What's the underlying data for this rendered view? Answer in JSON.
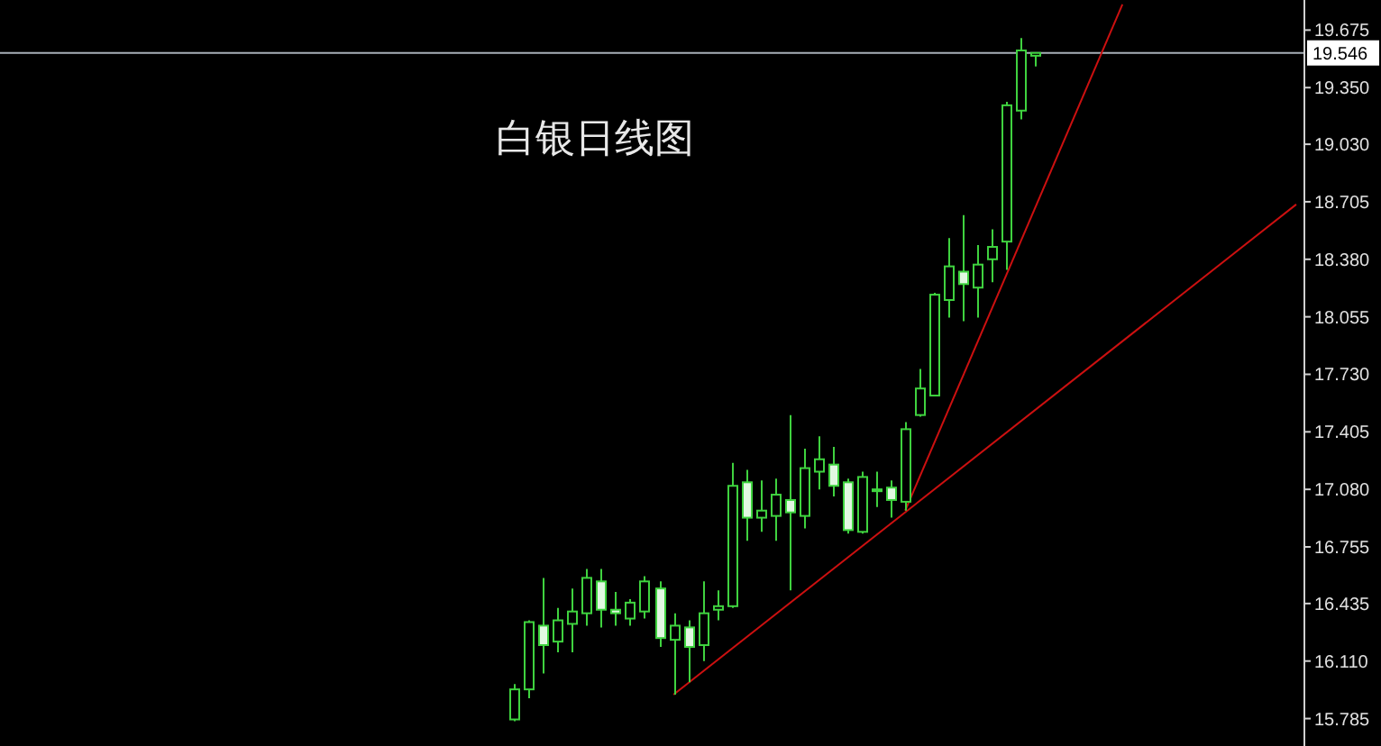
{
  "chart_data": {
    "type": "candlestick",
    "title": "白银日线图",
    "color": "#3fd23f",
    "categories": [
      null,
      null,
      null,
      null,
      null,
      null,
      null,
      null,
      null,
      null,
      null,
      null,
      null,
      null,
      null,
      null,
      null,
      null,
      null,
      null,
      null,
      null,
      null,
      null,
      null,
      null,
      null,
      null,
      null,
      null,
      null,
      null,
      null,
      null,
      null,
      null,
      null,
      null,
      null,
      null,
      null,
      null,
      null,
      null,
      null,
      null,
      null,
      null,
      null,
      null,
      null,
      null,
      null,
      null,
      null,
      null,
      null,
      null,
      null,
      null,
      null,
      null,
      null,
      null,
      null,
      null,
      null,
      null,
      null,
      null,
      null,
      null,
      null,
      null,
      null,
      null,
      null,
      null,
      null,
      null,
      null,
      null,
      null,
      null,
      null,
      null,
      null,
      null,
      null,
      null
    ],
    "ohlc": [
      null,
      null,
      null,
      null,
      null,
      null,
      null,
      null,
      null,
      null,
      null,
      null,
      null,
      null,
      null,
      null,
      null,
      null,
      null,
      null,
      null,
      null,
      null,
      null,
      null,
      null,
      null,
      null,
      null,
      null,
      null,
      null,
      null,
      null,
      null,
      [
        15.78,
        15.98,
        15.77,
        15.95
      ],
      [
        15.95,
        16.34,
        15.9,
        16.33
      ],
      [
        16.31,
        16.58,
        16.04,
        16.2
      ],
      [
        16.22,
        16.41,
        16.16,
        16.34
      ],
      [
        16.32,
        16.52,
        16.16,
        16.39
      ],
      [
        16.38,
        16.63,
        16.31,
        16.58
      ],
      [
        16.56,
        16.63,
        16.3,
        16.4
      ],
      [
        16.4,
        16.5,
        16.31,
        16.38
      ],
      [
        16.35,
        16.46,
        16.31,
        16.44
      ],
      [
        16.39,
        16.59,
        16.35,
        16.56
      ],
      [
        16.52,
        16.56,
        16.19,
        16.24
      ],
      [
        16.23,
        16.38,
        15.92,
        16.31
      ],
      [
        16.3,
        16.34,
        15.99,
        16.19
      ],
      [
        16.2,
        16.56,
        16.11,
        16.38
      ],
      [
        16.4,
        16.51,
        16.34,
        16.42
      ],
      [
        16.42,
        17.23,
        16.41,
        17.1
      ],
      [
        17.12,
        17.19,
        16.79,
        16.92
      ],
      [
        16.92,
        17.13,
        16.84,
        16.96
      ],
      [
        16.93,
        17.14,
        16.79,
        17.05
      ],
      [
        17.02,
        17.5,
        16.51,
        16.95
      ],
      [
        16.93,
        17.31,
        16.86,
        17.2
      ],
      [
        17.18,
        17.38,
        17.08,
        17.25
      ],
      [
        17.22,
        17.32,
        17.04,
        17.1
      ],
      [
        17.12,
        17.14,
        16.83,
        16.85
      ],
      [
        16.84,
        17.18,
        16.83,
        17.15
      ],
      [
        17.08,
        17.18,
        16.98,
        17.08
      ],
      [
        17.09,
        17.13,
        16.92,
        17.02
      ],
      [
        17.01,
        17.46,
        16.96,
        17.42
      ],
      [
        17.5,
        17.76,
        17.49,
        17.65
      ],
      [
        17.61,
        18.19,
        17.61,
        18.18
      ],
      [
        18.15,
        18.5,
        18.05,
        18.34
      ],
      [
        18.31,
        18.63,
        18.03,
        18.24
      ],
      [
        18.22,
        18.46,
        18.05,
        18.35
      ],
      [
        18.38,
        18.55,
        18.25,
        18.45
      ],
      [
        18.48,
        19.27,
        18.32,
        19.25
      ],
      [
        19.22,
        19.63,
        19.17,
        19.56
      ],
      [
        19.53,
        19.55,
        19.47,
        19.546
      ],
      null,
      null,
      null,
      null,
      null,
      null,
      null,
      null,
      null,
      null,
      null,
      null,
      null,
      null,
      null,
      null,
      null,
      null
    ],
    "ylim": [
      15.63,
      19.845
    ],
    "yticks": [
      {
        "value": 19.675,
        "label": "19.675"
      },
      {
        "value": 19.35,
        "label": "19.350"
      },
      {
        "value": 19.03,
        "label": "19.030"
      },
      {
        "value": 18.705,
        "label": "18.705"
      },
      {
        "value": 18.38,
        "label": "18.380"
      },
      {
        "value": 18.055,
        "label": "18.055"
      },
      {
        "value": 17.73,
        "label": "17.730"
      },
      {
        "value": 17.405,
        "label": "17.405"
      },
      {
        "value": 17.08,
        "label": "17.080"
      },
      {
        "value": 16.755,
        "label": "16.755"
      },
      {
        "value": 16.435,
        "label": "16.435"
      },
      {
        "value": 16.11,
        "label": "16.110"
      },
      {
        "value": 15.785,
        "label": "15.785"
      }
    ],
    "ref_lines": [
      {
        "axis": "y",
        "value": 19.546,
        "label": "19.546",
        "color": "#a8b0b8"
      }
    ],
    "series": [
      {
        "type": "line",
        "color": "#cc1010",
        "values": [
          null,
          null,
          null,
          null,
          null,
          null,
          null,
          null,
          null,
          null,
          null,
          null,
          null,
          null,
          null,
          null,
          null,
          null,
          null,
          null,
          null,
          null,
          null,
          null,
          null,
          null,
          null,
          null,
          null,
          null,
          null,
          null,
          null,
          null,
          null,
          null,
          null,
          null,
          null,
          null,
          null,
          null,
          null,
          null,
          null,
          null,
          15.92,
          null,
          null,
          null,
          null,
          null,
          null,
          null,
          null,
          null,
          null,
          null,
          null,
          null,
          null,
          null,
          null,
          null,
          null,
          null,
          null,
          null,
          null,
          null,
          null,
          null,
          null,
          null,
          null,
          null,
          null,
          null,
          null,
          null,
          null,
          null,
          null,
          null,
          null,
          null,
          null,
          null,
          null,
          18.69
        ]
      },
      {
        "type": "line",
        "color": "#cc1010",
        "values": [
          null,
          null,
          null,
          null,
          null,
          null,
          null,
          null,
          null,
          null,
          null,
          null,
          null,
          null,
          null,
          null,
          null,
          null,
          null,
          null,
          null,
          null,
          null,
          null,
          null,
          null,
          null,
          null,
          null,
          null,
          null,
          null,
          null,
          null,
          null,
          null,
          null,
          null,
          null,
          null,
          null,
          null,
          null,
          null,
          null,
          null,
          null,
          null,
          null,
          null,
          null,
          null,
          null,
          null,
          null,
          null,
          null,
          null,
          null,
          null,
          null,
          null,
          16.96,
          null,
          null,
          null,
          null,
          null,
          null,
          null,
          null,
          null,
          null,
          null,
          null,
          null,
          null,
          19.82,
          null,
          null,
          null,
          null,
          null,
          null,
          null,
          null,
          null,
          null,
          null,
          null
        ]
      }
    ]
  }
}
